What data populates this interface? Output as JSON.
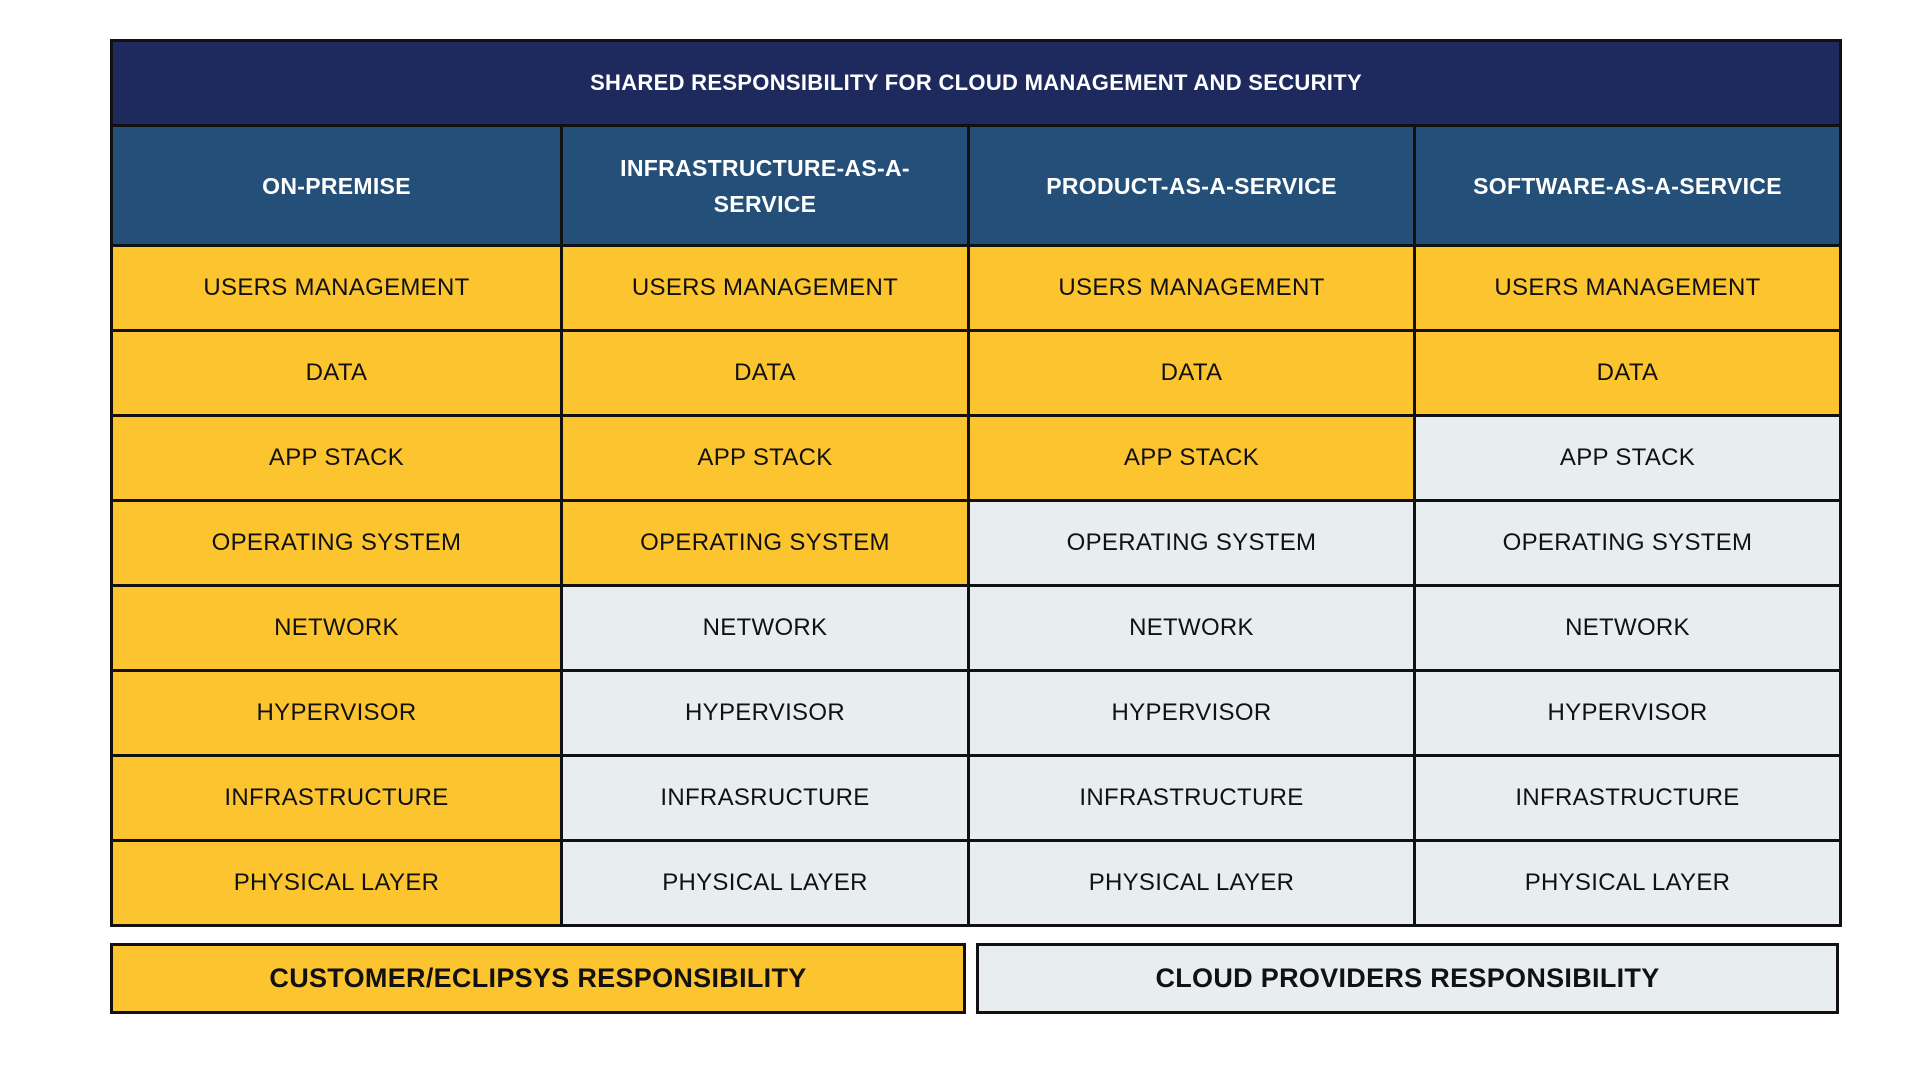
{
  "title": "SHARED RESPONSIBILITY FOR CLOUD MANAGEMENT AND SECURITY",
  "colors": {
    "title_bg": "#1e2a5e",
    "header_bg": "#244f78",
    "customer": "#fcc52f",
    "provider": "#e8edf0",
    "border": "#111111"
  },
  "columns": [
    {
      "header": "ON-PREMISE",
      "cells": [
        "USERS MANAGEMENT",
        "DATA",
        "APP STACK",
        "OPERATING SYSTEM",
        "NETWORK",
        "HYPERVISOR",
        "INFRASTRUCTURE",
        "PHYSICAL LAYER"
      ],
      "owner": [
        "customer",
        "customer",
        "customer",
        "customer",
        "customer",
        "customer",
        "customer",
        "customer"
      ]
    },
    {
      "header": "INFRASTRUCTURE-AS-A-SERVICE",
      "cells": [
        "USERS MANAGEMENT",
        "DATA",
        "APP STACK",
        "OPERATING SYSTEM",
        "NETWORK",
        "HYPERVISOR",
        "INFRASRUCTURE",
        "PHYSICAL LAYER"
      ],
      "owner": [
        "customer",
        "customer",
        "customer",
        "customer",
        "provider",
        "provider",
        "provider",
        "provider"
      ]
    },
    {
      "header": "PRODUCT-AS-A-SERVICE",
      "cells": [
        "USERS MANAGEMENT",
        "DATA",
        "APP STACK",
        "OPERATING SYSTEM",
        "NETWORK",
        "HYPERVISOR",
        "INFRASTRUCTURE",
        "PHYSICAL LAYER"
      ],
      "owner": [
        "customer",
        "customer",
        "customer",
        "provider",
        "provider",
        "provider",
        "provider",
        "provider"
      ]
    },
    {
      "header": "SOFTWARE-AS-A-SERVICE",
      "cells": [
        "USERS MANAGEMENT",
        "DATA",
        "APP STACK",
        "OPERATING SYSTEM",
        "NETWORK",
        "HYPERVISOR",
        "INFRASTRUCTURE",
        "PHYSICAL LAYER"
      ],
      "owner": [
        "customer",
        "customer",
        "provider",
        "provider",
        "provider",
        "provider",
        "provider",
        "provider"
      ]
    }
  ],
  "legend": {
    "customer": "CUSTOMER/ECLIPSYS RESPONSIBILITY",
    "provider": "CLOUD PROVIDERS RESPONSIBILITY"
  }
}
